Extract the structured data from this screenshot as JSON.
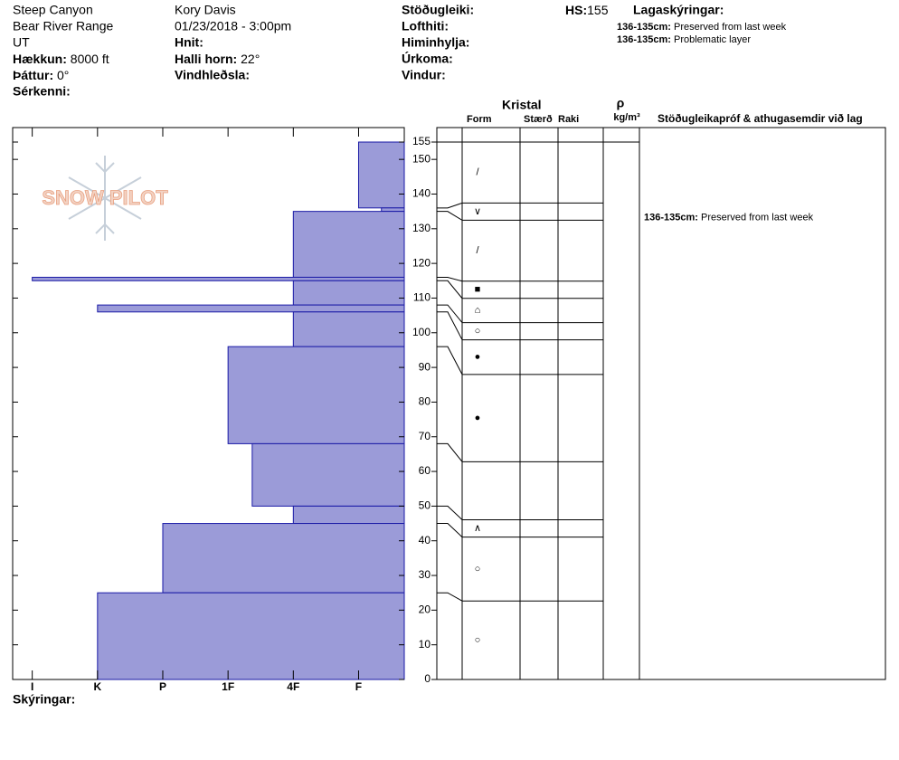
{
  "header": {
    "site": "Steep Canyon",
    "range": "Bear River Range",
    "state": "UT",
    "elevation_label": "Hækkun:",
    "elevation": "8000 ft",
    "aspect_label": "Þáttur:",
    "aspect": "0°",
    "features_label": "Sérkenni:",
    "observer": "Kory Davis",
    "datetime": "01/23/2018 - 3:00pm",
    "coords_label": "Hnit:",
    "slope_label": "Halli horn:",
    "slope": "22°",
    "wind_loading_label": "Vindhleðsla:",
    "stability_label": "Stöðugleiki:",
    "air_temp_label": "Lofthiti:",
    "sky_label": "Himinhylja:",
    "precip_label": "Úrkoma:",
    "wind_label": "Vindur:",
    "hs_label": "HS:",
    "hs": "155",
    "layer_notes_title": "Lagaskýringar:",
    "layer_notes": [
      {
        "range": "136-135cm:",
        "text": "Preserved from last week"
      },
      {
        "range": "136-135cm:",
        "text": "Problematic layer"
      }
    ]
  },
  "chart_data": {
    "type": "hardness-profile",
    "logo": "SNOW PILOT",
    "color": "#9b9bd8",
    "edge_color": "#1a1aa6",
    "xlim": [
      6.3,
      0.3
    ],
    "xticks": [
      {
        "value": 6,
        "label": "I"
      },
      {
        "value": 5,
        "label": "K"
      },
      {
        "value": 4,
        "label": "P"
      },
      {
        "value": 3,
        "label": "1F"
      },
      {
        "value": 2,
        "label": "4F"
      },
      {
        "value": 1,
        "label": "F"
      }
    ],
    "ylim": [
      0,
      155
    ],
    "yticks": [
      0,
      10,
      20,
      30,
      40,
      50,
      60,
      70,
      80,
      90,
      100,
      110,
      120,
      130,
      140,
      150,
      155
    ],
    "layers": [
      {
        "top": 155,
        "bottom": 136,
        "hardness": 1,
        "form": "/"
      },
      {
        "top": 136,
        "bottom": 135,
        "hardness": 0.65,
        "form": "∨"
      },
      {
        "top": 135,
        "bottom": 116,
        "hardness": 2,
        "form": "/"
      },
      {
        "top": 116,
        "bottom": 115,
        "hardness": 6,
        "form": "■"
      },
      {
        "top": 115,
        "bottom": 108,
        "hardness": 2,
        "form": "⌂"
      },
      {
        "top": 108,
        "bottom": 106,
        "hardness": 5,
        "form": "○"
      },
      {
        "top": 106,
        "bottom": 96,
        "hardness": 2,
        "form": "●"
      },
      {
        "top": 96,
        "bottom": 68,
        "hardness": 3,
        "form": "●"
      },
      {
        "top": 68,
        "bottom": 50,
        "hardness": 2.63,
        "form": null
      },
      {
        "top": 50,
        "bottom": 45,
        "hardness": 2,
        "form": "∧"
      },
      {
        "top": 45,
        "bottom": 25,
        "hardness": 4,
        "form": "○"
      },
      {
        "top": 25,
        "bottom": 0,
        "hardness": 5,
        "form": "○"
      }
    ]
  },
  "table": {
    "crystal": "Kristal",
    "form": "Form",
    "size": "Stærð",
    "moisture": "Raki",
    "density_symbol": "ρ",
    "density_unit": "kg/m³",
    "tests": "Stöðugleikapróf & athugasemdir við lag",
    "comments": [
      {
        "layer": 1,
        "range": "136-135cm:",
        "text": "Preserved from last week"
      }
    ]
  },
  "footer": {
    "notes_label": "Skýringar:"
  }
}
